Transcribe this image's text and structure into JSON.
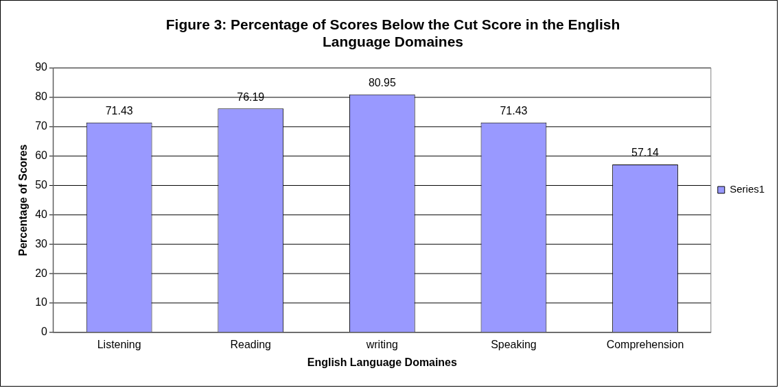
{
  "chart_data": {
    "type": "bar",
    "title": "Figure 3: Percentage of Scores Below the Cut Score in the English Language Domaines",
    "xlabel": "English Language Domaines",
    "ylabel": "Percentage of Scores",
    "categories": [
      "Listening",
      "Reading",
      "writing",
      "Speaking",
      "Comprehension"
    ],
    "series": [
      {
        "name": "Series1",
        "color": "#9999ff",
        "values": [
          71.43,
          76.19,
          80.95,
          71.43,
          57.14
        ]
      }
    ],
    "ylim": [
      0,
      90
    ],
    "yticks": [
      0,
      10,
      20,
      30,
      40,
      50,
      60,
      70,
      80,
      90
    ],
    "grid": "y",
    "legend": "right",
    "data_labels": true
  }
}
